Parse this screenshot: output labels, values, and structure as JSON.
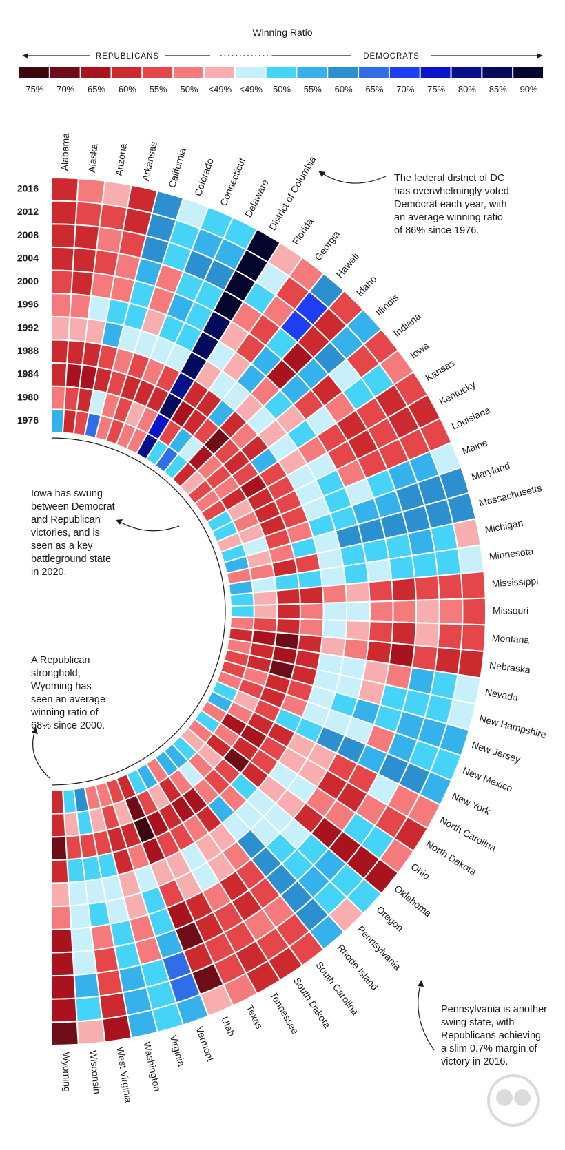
{
  "chart_data": {
    "type": "heatmap",
    "title": "Winning Ratio",
    "direction_labels": [
      "REPUBLICANS",
      "DEMOCRATS"
    ],
    "legend": {
      "labels": [
        "75%",
        "70%",
        "65%",
        "60%",
        "55%",
        "50%",
        "<49%",
        "<49%",
        "50%",
        "55%",
        "60%",
        "65%",
        "70%",
        "75%",
        "80%",
        "85%",
        "90%"
      ],
      "colors": [
        "#3e060e",
        "#6e0c17",
        "#a8131e",
        "#cd2a30",
        "#e5464a",
        "#f47a7c",
        "#f8aeae",
        "#c8f0fb",
        "#45d3f7",
        "#35b2ec",
        "#2c8fcf",
        "#2f6ee6",
        "#1f3ef2",
        "#0b14c8",
        "#06108a",
        "#040a5c",
        "#03052e"
      ]
    },
    "years": [
      "2016",
      "2012",
      "2008",
      "2004",
      "2000",
      "1996",
      "1992",
      "1988",
      "1984",
      "1980",
      "1976"
    ],
    "states": [
      "Alabama",
      "Alaska",
      "Arizona",
      "Arkansas",
      "California",
      "Colorado",
      "Connecticut",
      "Delaware",
      "District of Columbia",
      "Florida",
      "Georgia",
      "Hawaii",
      "Idaho",
      "Illinois",
      "Indiana",
      "Iowa",
      "Kansas",
      "Kentucky",
      "Louisiana",
      "Maine",
      "Maryland",
      "Massachusetts",
      "Michigan",
      "Minnesota",
      "Mississippi",
      "Missouri",
      "Montana",
      "Nebraska",
      "Nevada",
      "New Hampshire",
      "New Jersey",
      "New Mexico",
      "New York",
      "North Carolina",
      "North Dakota",
      "Ohio",
      "Oklahoma",
      "Oregon",
      "Pennsylvania",
      "Rhode Island",
      "South Carolina",
      "South Dakota",
      "Tennessee",
      "Texas",
      "Utah",
      "Vermont",
      "Virginia",
      "Washington",
      "West Virginia",
      "Wisconsin",
      "Wyoming"
    ],
    "values": [
      [
        "R60",
        "R50",
        "R<49",
        "R60",
        "D60",
        "D<49",
        "D50",
        "D50",
        "D90",
        "R<49",
        "R50",
        "D60",
        "R55",
        "D55",
        "R55",
        "R50",
        "R55",
        "R60",
        "R55",
        "D<49",
        "D60",
        "D60",
        "R<49",
        "D<49",
        "R55",
        "R55",
        "R55",
        "R60",
        "D<49",
        "D<49",
        "D55",
        "D50",
        "D55",
        "R50",
        "R60",
        "R50",
        "R65",
        "D50",
        "R<49",
        "D55",
        "R55",
        "R60",
        "R60",
        "R50",
        "R<49",
        "D55",
        "D50",
        "D55",
        "R65",
        "R<49",
        "R70"
      ],
      [
        "R60",
        "R55",
        "R55",
        "R60",
        "D60",
        "D50",
        "D55",
        "D55",
        "D90",
        "D<49",
        "R55",
        "D70",
        "R60",
        "D55",
        "R55",
        "D50",
        "R60",
        "R60",
        "R55",
        "D55",
        "D60",
        "D60",
        "D50",
        "D50",
        "R55",
        "R50",
        "R55",
        "R60",
        "D50",
        "D50",
        "D55",
        "D50",
        "D60",
        "R50",
        "R55",
        "D50",
        "R65",
        "D50",
        "D50",
        "D60",
        "R55",
        "R55",
        "R60",
        "R55",
        "R70",
        "D65",
        "D50",
        "D55",
        "R60",
        "D50",
        "R65"
      ],
      [
        "R60",
        "R60",
        "R50",
        "R55",
        "D60",
        "D50",
        "D60",
        "D60",
        "D90",
        "D50",
        "R50",
        "D70",
        "R60",
        "D60",
        "D<49",
        "D50",
        "R55",
        "R55",
        "R55",
        "D55",
        "D60",
        "D60",
        "D55",
        "D50",
        "R55",
        "R<49",
        "R<49",
        "R55",
        "D55",
        "D50",
        "D55",
        "D55",
        "D60",
        "D<49",
        "R50",
        "D50",
        "R65",
        "D55",
        "D55",
        "D60",
        "R50",
        "R50",
        "R55",
        "R55",
        "R60",
        "D65",
        "D50",
        "D55",
        "R55",
        "D55",
        "R65"
      ],
      [
        "R60",
        "R60",
        "R55",
        "R50",
        "D55",
        "R50",
        "D50",
        "D50",
        "D90",
        "R50",
        "R55",
        "D50",
        "R65",
        "D55",
        "R60",
        "R50",
        "R60",
        "R60",
        "R55",
        "D50",
        "D55",
        "D60",
        "D50",
        "D50",
        "R60",
        "R50",
        "R60",
        "R65",
        "R50",
        "D50",
        "D50",
        "R50",
        "D55",
        "R55",
        "R60",
        "R50",
        "R65",
        "D50",
        "D50",
        "D60",
        "R55",
        "R60",
        "R55",
        "R60",
        "R70",
        "D55",
        "R50",
        "D50",
        "R55",
        "D<49",
        "R65"
      ],
      [
        "R55",
        "R60",
        "R50",
        "R50",
        "D50",
        "R50",
        "D55",
        "D50",
        "D85",
        "R<49",
        "R55",
        "D55",
        "R65",
        "D55",
        "R55",
        "D<49",
        "R55",
        "R55",
        "R50",
        "D<49",
        "D55",
        "D60",
        "D50",
        "D<49",
        "R55",
        "R50",
        "R55",
        "R60",
        "R<49",
        "R<49",
        "D55",
        "D<49",
        "D60",
        "R55",
        "R60",
        "R50",
        "R60",
        "D<49",
        "D50",
        "D60",
        "R55",
        "R60",
        "R50",
        "R60",
        "R65",
        "D50",
        "R50",
        "D50",
        "R50",
        "D<49",
        "R65"
      ],
      [
        "R50",
        "R50",
        "D<49",
        "D50",
        "D50",
        "R<49",
        "D50",
        "D50",
        "D85",
        "D<49",
        "R<49",
        "D55",
        "R50",
        "D50",
        "R<49",
        "D50",
        "R50",
        "D<49",
        "D50",
        "D50",
        "D50",
        "D60",
        "D50",
        "D50",
        "R<49",
        "D<49",
        "R<49",
        "R50",
        "D<49",
        "D<49",
        "D50",
        "D<49",
        "D60",
        "R<49",
        "R<49",
        "D<49",
        "R<49",
        "D<49",
        "D<49",
        "D60",
        "R50",
        "R<49",
        "D<49",
        "R<49",
        "R55",
        "D50",
        "R<49",
        "D<49",
        "D50",
        "D<49",
        "R50"
      ],
      [
        "R<49",
        "R<49",
        "R<49",
        "D55",
        "D<49",
        "D<49",
        "D<49",
        "D<49",
        "D85",
        "R<49",
        "D<49",
        "D<49",
        "R<49",
        "D<49",
        "R<49",
        "D<49",
        "R<49",
        "D<49",
        "D<49",
        "D<49",
        "D50",
        "D<49",
        "D<49",
        "D<49",
        "R50",
        "D<49",
        "D<49",
        "R<49",
        "D<49",
        "D<49",
        "D<49",
        "D<49",
        "D50",
        "R<49",
        "R<49",
        "D<49",
        "R<49",
        "D<49",
        "D<49",
        "D<49",
        "R<49",
        "R<49",
        "D<49",
        "R<49",
        "R<49",
        "D<49",
        "R<49",
        "D<49",
        "D<49",
        "D<49",
        "R<49"
      ],
      [
        "R60",
        "R60",
        "R60",
        "R55",
        "R50",
        "R55",
        "R50",
        "R55",
        "D80",
        "R60",
        "R60",
        "D55",
        "R60",
        "R50",
        "R60",
        "D55",
        "R55",
        "R55",
        "R55",
        "R55",
        "R50",
        "D50",
        "R55",
        "D50",
        "R60",
        "R50",
        "R50",
        "R60",
        "R60",
        "R60",
        "R55",
        "R50",
        "D50",
        "R60",
        "R55",
        "R55",
        "R60",
        "D50",
        "R50",
        "D55",
        "R60",
        "R50",
        "R55",
        "R55",
        "R65",
        "R50",
        "R60",
        "D50",
        "D50",
        "D50",
        "R60"
      ],
      [
        "R60",
        "R65",
        "R65",
        "R60",
        "R55",
        "R60",
        "R60",
        "R60",
        "D85",
        "R65",
        "R60",
        "R55",
        "R70",
        "R55",
        "R60",
        "R55",
        "R65",
        "R60",
        "R60",
        "R60",
        "R55",
        "R50",
        "R60",
        "D50",
        "R60",
        "R60",
        "R60",
        "R70",
        "R65",
        "R70",
        "R60",
        "R60",
        "R55",
        "R60",
        "R65",
        "R60",
        "R70",
        "R55",
        "R55",
        "R50",
        "R65",
        "R65",
        "R60",
        "R65",
        "R75",
        "R60",
        "R60",
        "R55",
        "R55",
        "R55",
        "R70"
      ],
      [
        "R50",
        "R55",
        "R60",
        "D<49",
        "R50",
        "R55",
        "R<49",
        "R50",
        "D75",
        "R55",
        "D55",
        "D<49",
        "R65",
        "R50",
        "R55",
        "R50",
        "R60",
        "R<49",
        "R50",
        "R<49",
        "D<49",
        "R<49",
        "R50",
        "D<49",
        "R<49",
        "R<49",
        "R55",
        "R65",
        "R60",
        "R60",
        "R50",
        "R55",
        "R<49",
        "R50",
        "R65",
        "R50",
        "R60",
        "R<49",
        "R50",
        "D<49",
        "R50",
        "R60",
        "R<49",
        "R55",
        "R70",
        "R<49",
        "R55",
        "R<49",
        "D50",
        "R<49",
        "R60"
      ],
      [
        "D55",
        "R60",
        "R55",
        "D65",
        "R50",
        "R55",
        "R50",
        "R50",
        "D80",
        "D50",
        "D65",
        "D50",
        "R60",
        "R<49",
        "R55",
        "R50",
        "R55",
        "D50",
        "D50",
        "R<49",
        "D50",
        "D55",
        "R50",
        "D55",
        "D50",
        "D50",
        "R50",
        "R60",
        "R50",
        "R55",
        "R55",
        "R50",
        "D50",
        "D55",
        "R50",
        "D50",
        "R50",
        "R<49",
        "D50",
        "D55",
        "D55",
        "R50",
        "D55",
        "D50",
        "R60",
        "R55",
        "R50",
        "R50",
        "D60",
        "D50",
        "R60"
      ]
    ],
    "value_encoding": "R = Republican winning ratio, D = Democratic winning ratio (legend buckets)"
  },
  "annotations": {
    "dc": "The federal district of DC\nhas overwhelmingly voted\nDemocrat each year, with\nan average winning ratio\nof 86% since 1976.",
    "iowa": "Iowa has swung\nbetween Democrat\nand Republican\nvictories, and is\nseen as a key\nbattleground state\nin 2020.",
    "wyoming": "A Republican\nstronghold,\nWyoming has\nseen an average\nwinning ratio of\n68% since 2000.",
    "pennsylvania": "Pennsylvania is another\nswing state, with\nRepublicans achieving\na slim 0.7% margin of\nvictory in 2016."
  }
}
